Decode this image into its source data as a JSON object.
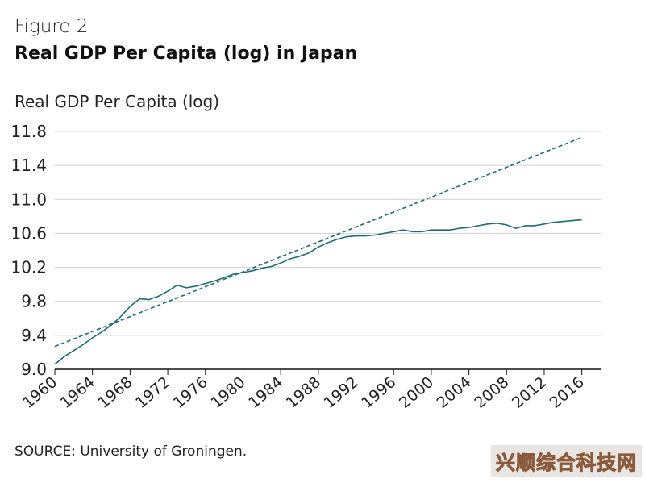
{
  "figure_label": "Figure 2",
  "title": "Real GDP Per Capita (log) in Japan",
  "source": "SOURCE: University of Groningen.",
  "watermark": "兴顺综合科技网",
  "colors": {
    "actual": "#1f6b73",
    "trend": "#1f6b73",
    "grid": "#d0d0d0",
    "axis": "#111111"
  },
  "chart_data": {
    "type": "line",
    "ylabel": "Real GDP Per Capita (log)",
    "xlabel": "",
    "xlim": [
      1960,
      2018
    ],
    "ylim": [
      9.0,
      11.8
    ],
    "grid": true,
    "xticks": [
      "1960",
      "1964",
      "1968",
      "1972",
      "1976",
      "1980",
      "1984",
      "1988",
      "1992",
      "1996",
      "2000",
      "2004",
      "2008",
      "2012",
      "2016"
    ],
    "yticks": [
      "9.0",
      "9.4",
      "9.8",
      "10.2",
      "10.6",
      "11.0",
      "11.4",
      "11.8"
    ],
    "series": [
      {
        "style": "solid",
        "x": [
          1960,
          1961,
          1962,
          1963,
          1964,
          1965,
          1966,
          1967,
          1968,
          1969,
          1970,
          1971,
          1972,
          1973,
          1974,
          1975,
          1976,
          1977,
          1978,
          1979,
          1980,
          1981,
          1982,
          1983,
          1984,
          1985,
          1986,
          1987,
          1988,
          1989,
          1990,
          1991,
          1992,
          1993,
          1994,
          1995,
          1996,
          1997,
          1998,
          1999,
          2000,
          2001,
          2002,
          2003,
          2004,
          2005,
          2006,
          2007,
          2008,
          2009,
          2010,
          2011,
          2012,
          2013,
          2014,
          2015,
          2016
        ],
        "y": [
          9.06,
          9.15,
          9.22,
          9.29,
          9.37,
          9.44,
          9.52,
          9.62,
          9.74,
          9.83,
          9.82,
          9.86,
          9.92,
          9.99,
          9.96,
          9.98,
          10.01,
          10.04,
          10.08,
          10.12,
          10.14,
          10.16,
          10.19,
          10.21,
          10.25,
          10.3,
          10.33,
          10.37,
          10.44,
          10.49,
          10.53,
          10.56,
          10.57,
          10.57,
          10.58,
          10.6,
          10.62,
          10.64,
          10.62,
          10.62,
          10.64,
          10.64,
          10.64,
          10.66,
          10.67,
          10.69,
          10.71,
          10.72,
          10.7,
          10.66,
          10.69,
          10.69,
          10.71,
          10.73,
          10.74,
          10.75,
          10.76
        ]
      },
      {
        "style": "dashed",
        "x": [
          1960,
          2016
        ],
        "y": [
          9.27,
          11.73
        ]
      }
    ]
  }
}
